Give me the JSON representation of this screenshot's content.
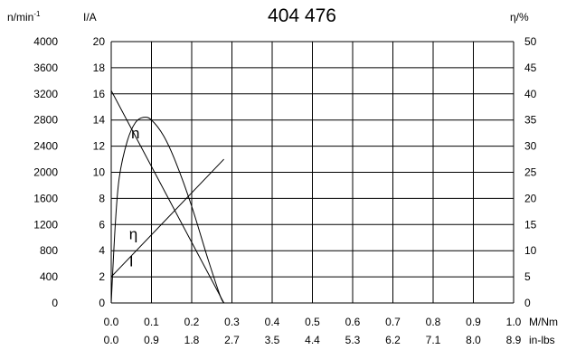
{
  "chart_data": {
    "type": "line",
    "title": "404 476",
    "axes": {
      "speed": {
        "label_base": "n/min",
        "label_sup": "-1",
        "range": [
          0,
          4000
        ],
        "ticks": [
          "4000",
          "3600",
          "3200",
          "2800",
          "2400",
          "2000",
          "1600",
          "1200",
          "800",
          "400",
          "0"
        ]
      },
      "current": {
        "label": "I/A",
        "range": [
          0,
          20
        ],
        "ticks": [
          "20",
          "18",
          "16",
          "14",
          "12",
          "10",
          "8",
          "6",
          "4",
          "2",
          "0"
        ]
      },
      "efficiency": {
        "label": "η/%",
        "range": [
          0,
          50
        ],
        "ticks": [
          "50",
          "45",
          "40",
          "35",
          "30",
          "25",
          "20",
          "15",
          "10",
          "5",
          "0"
        ]
      },
      "torque_nm": {
        "label": "M/Nm",
        "range": [
          0,
          1.0
        ],
        "ticks": [
          "0.0",
          "0.1",
          "0.2",
          "0.3",
          "0.4",
          "0.5",
          "0.6",
          "0.7",
          "0.8",
          "0.9",
          "1.0"
        ]
      },
      "torque_inlbs": {
        "label": "in-lbs",
        "ticks": [
          "0.0",
          "0.9",
          "1.8",
          "2.7",
          "3.5",
          "4.4",
          "5.3",
          "6.2",
          "7.1",
          "8.0",
          "8.9"
        ]
      }
    },
    "grid": true,
    "series": [
      {
        "name": "n",
        "axis": "speed",
        "points": [
          [
            0.0,
            3250
          ],
          [
            0.28,
            0
          ]
        ]
      },
      {
        "name": "I",
        "axis": "current",
        "points": [
          [
            0.0,
            2.0
          ],
          [
            0.28,
            11.0
          ]
        ]
      },
      {
        "name": "η",
        "axis": "efficiency",
        "points": [
          [
            0.0,
            0
          ],
          [
            0.01,
            15
          ],
          [
            0.02,
            24
          ],
          [
            0.04,
            31
          ],
          [
            0.06,
            34.5
          ],
          [
            0.08,
            35.5
          ],
          [
            0.1,
            35
          ],
          [
            0.13,
            32
          ],
          [
            0.16,
            27
          ],
          [
            0.2,
            18.5
          ],
          [
            0.24,
            8.5
          ],
          [
            0.27,
            1.5
          ],
          [
            0.28,
            0
          ]
        ]
      }
    ]
  }
}
